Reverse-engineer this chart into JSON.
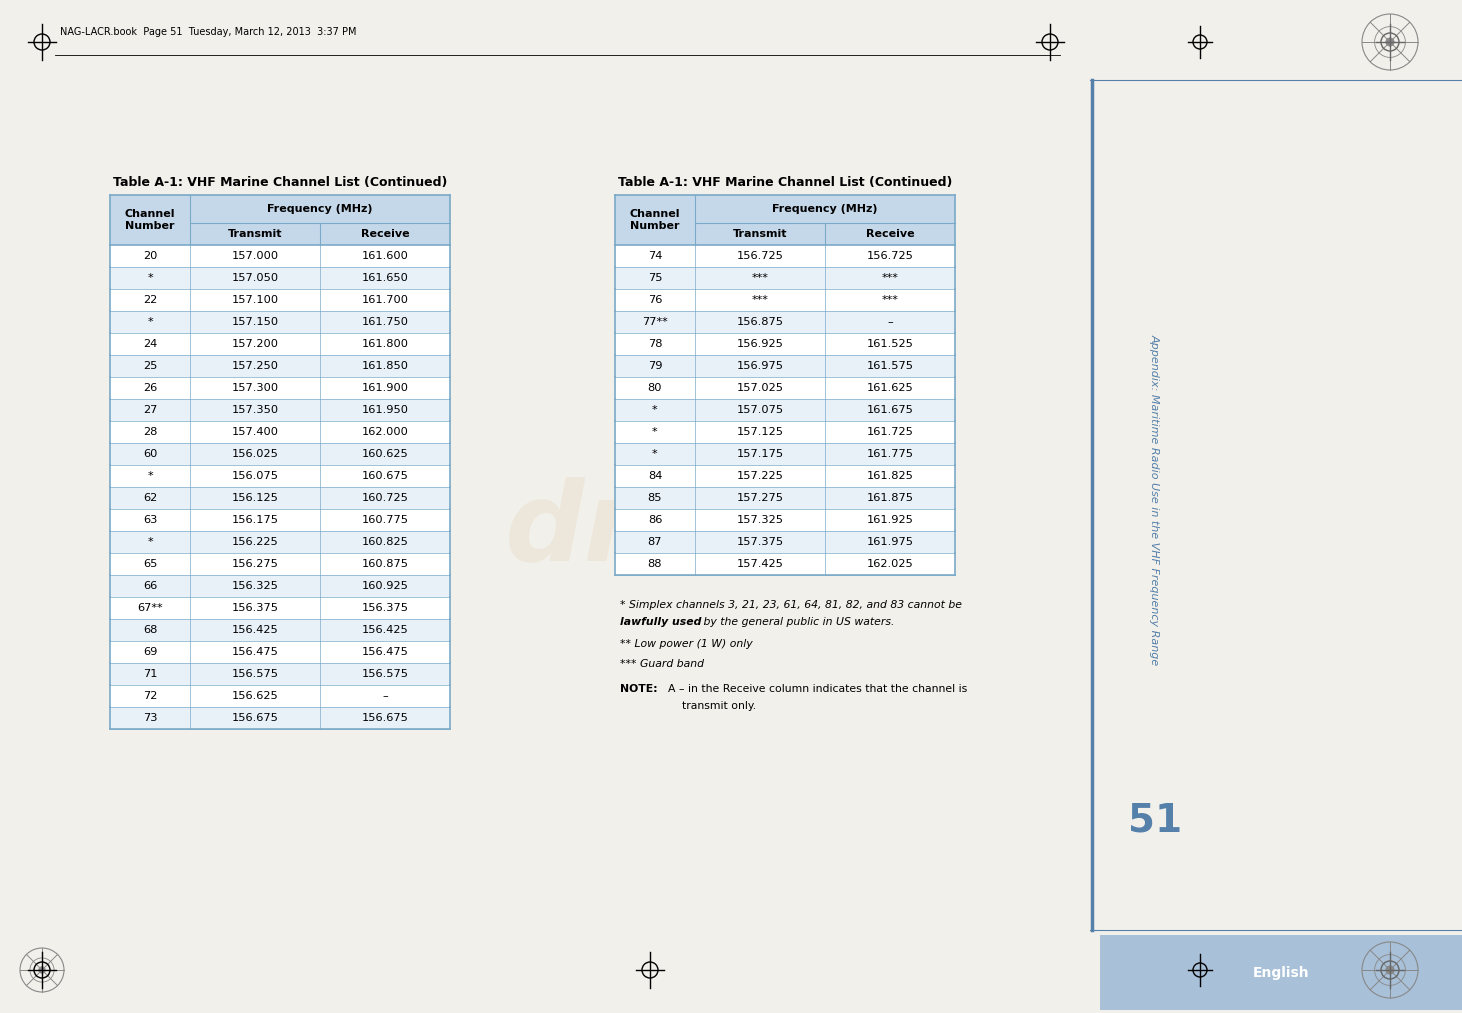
{
  "title": "Table A-1: VHF Marine Channel List (Continued)",
  "table1_rows": [
    [
      "20",
      "157.000",
      "161.600"
    ],
    [
      "*",
      "157.050",
      "161.650"
    ],
    [
      "22",
      "157.100",
      "161.700"
    ],
    [
      "*",
      "157.150",
      "161.750"
    ],
    [
      "24",
      "157.200",
      "161.800"
    ],
    [
      "25",
      "157.250",
      "161.850"
    ],
    [
      "26",
      "157.300",
      "161.900"
    ],
    [
      "27",
      "157.350",
      "161.950"
    ],
    [
      "28",
      "157.400",
      "162.000"
    ],
    [
      "60",
      "156.025",
      "160.625"
    ],
    [
      "*",
      "156.075",
      "160.675"
    ],
    [
      "62",
      "156.125",
      "160.725"
    ],
    [
      "63",
      "156.175",
      "160.775"
    ],
    [
      "*",
      "156.225",
      "160.825"
    ],
    [
      "65",
      "156.275",
      "160.875"
    ],
    [
      "66",
      "156.325",
      "160.925"
    ],
    [
      "67**",
      "156.375",
      "156.375"
    ],
    [
      "68",
      "156.425",
      "156.425"
    ],
    [
      "69",
      "156.475",
      "156.475"
    ],
    [
      "71",
      "156.575",
      "156.575"
    ],
    [
      "72",
      "156.625",
      "–"
    ],
    [
      "73",
      "156.675",
      "156.675"
    ]
  ],
  "table2_rows": [
    [
      "74",
      "156.725",
      "156.725"
    ],
    [
      "75",
      "***",
      "***"
    ],
    [
      "76",
      "***",
      "***"
    ],
    [
      "77**",
      "156.875",
      "–"
    ],
    [
      "78",
      "156.925",
      "161.525"
    ],
    [
      "79",
      "156.975",
      "161.575"
    ],
    [
      "80",
      "157.025",
      "161.625"
    ],
    [
      "*",
      "157.075",
      "161.675"
    ],
    [
      "*",
      "157.125",
      "161.725"
    ],
    [
      "*",
      "157.175",
      "161.775"
    ],
    [
      "84",
      "157.225",
      "161.825"
    ],
    [
      "85",
      "157.275",
      "161.875"
    ],
    [
      "86",
      "157.325",
      "161.925"
    ],
    [
      "87",
      "157.375",
      "161.975"
    ],
    [
      "88",
      "157.425",
      "162.025"
    ]
  ],
  "sidebar_text": "Appendix: Maritime Radio Use in the VHF Frequency Range",
  "page_number": "51",
  "language_tab": "English",
  "header_bg": "#c5d8ea",
  "alt_row_bg": "#e8f0f8",
  "white_bg": "#ffffff",
  "border_color": "#7aaac8",
  "sidebar_color": "#5580aa",
  "language_tab_bg": "#a8c0d8",
  "page_bg": "#f2f0eb",
  "watermark_color": "#c8a050",
  "header_file_text": "NAG-LACR.book  Page 51  Tuesday, March 12, 2013  3:37 PM"
}
